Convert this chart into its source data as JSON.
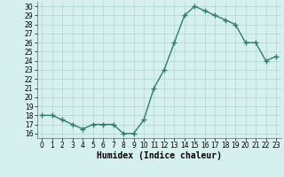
{
  "x": [
    0,
    1,
    2,
    3,
    4,
    5,
    6,
    7,
    8,
    9,
    10,
    11,
    12,
    13,
    14,
    15,
    16,
    17,
    18,
    19,
    20,
    21,
    22,
    23
  ],
  "y": [
    18,
    18,
    17.5,
    17,
    16.5,
    17,
    17,
    17,
    16,
    16,
    17.5,
    21,
    23,
    26,
    29,
    30,
    29.5,
    29,
    28.5,
    28,
    26,
    26,
    24,
    24.5
  ],
  "line_color": "#2e7d6e",
  "marker": "+",
  "marker_size": 4,
  "bg_color": "#d6f0ef",
  "grid_color": "#b0d4ce",
  "xlabel": "Humidex (Indice chaleur)",
  "xlim": [
    -0.5,
    23.5
  ],
  "ylim": [
    15.5,
    30.5
  ],
  "yticks": [
    16,
    17,
    18,
    19,
    20,
    21,
    22,
    23,
    24,
    25,
    26,
    27,
    28,
    29,
    30
  ],
  "xticks": [
    0,
    1,
    2,
    3,
    4,
    5,
    6,
    7,
    8,
    9,
    10,
    11,
    12,
    13,
    14,
    15,
    16,
    17,
    18,
    19,
    20,
    21,
    22,
    23
  ],
  "xlabel_fontsize": 7,
  "tick_fontsize": 5.5,
  "line_width": 1.0
}
